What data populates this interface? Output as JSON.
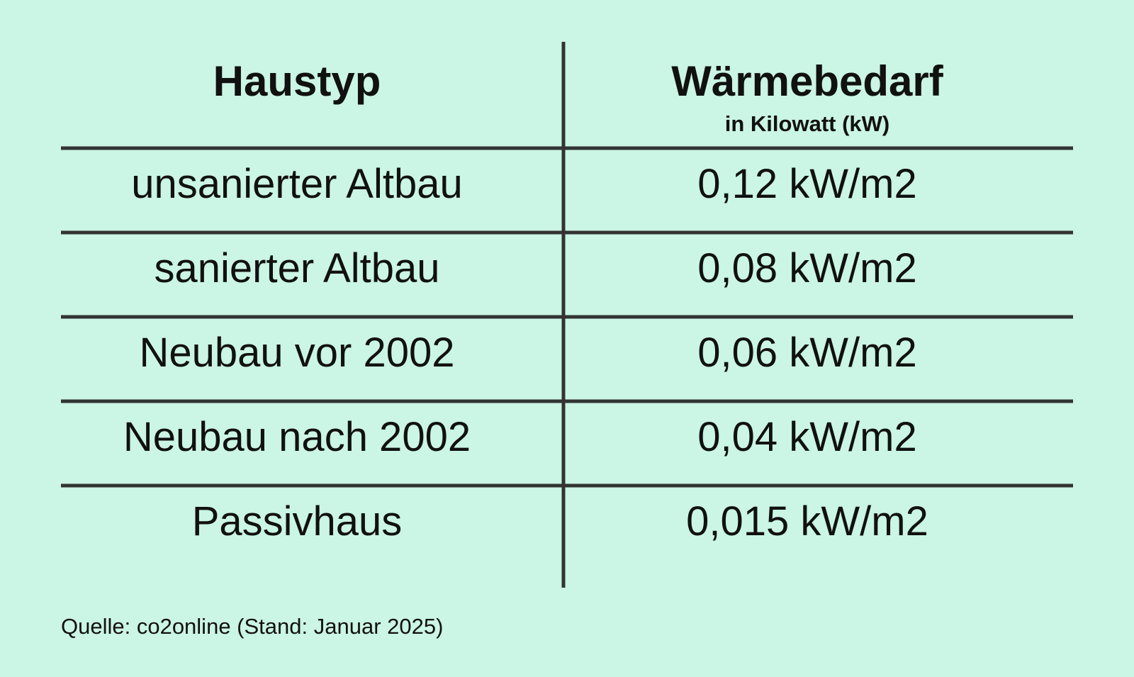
{
  "table": {
    "header": [
      {
        "title": "Haustyp"
      },
      {
        "title": "Wärmebedarf",
        "subtitle": "in Kilowatt (kW)"
      }
    ],
    "rows": [
      [
        "unsanierter Altbau",
        "0,12 kW/m2"
      ],
      [
        "sanierter Altbau",
        "0,08 kW/m2"
      ],
      [
        "Neubau vor 2002",
        "0,06 kW/m2"
      ],
      [
        "Neubau nach 2002",
        "0,04 kW/m2"
      ],
      [
        "Passivhaus",
        "0,015 kW/m2"
      ]
    ]
  },
  "source": "Quelle: co2online (Stand: Januar 2025)"
}
